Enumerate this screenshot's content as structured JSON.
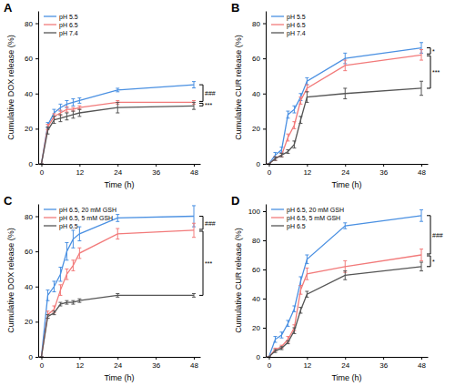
{
  "chart_data": [
    {
      "type": "line",
      "title": "A",
      "x_label": "Time (h)",
      "y_label": "Cumulative DOX release (%)",
      "x": [
        0,
        2,
        4,
        6,
        8,
        10,
        12,
        24,
        48
      ],
      "xlim": [
        -1,
        50
      ],
      "xticks": [
        0,
        12,
        24,
        36,
        48
      ],
      "ylim": [
        0,
        87
      ],
      "yticks": [
        0,
        20,
        40,
        60,
        80
      ],
      "legend": "upper left",
      "series": [
        {
          "name": "pH 5.5",
          "color": "#4a90e2",
          "values": [
            0,
            22,
            29,
            32,
            34,
            35,
            36,
            42,
            45
          ],
          "errors": [
            0,
            1.5,
            2,
            2,
            2,
            2,
            1.5,
            1,
            1.8
          ]
        },
        {
          "name": "pH 6.5",
          "color": "#f27a7a",
          "values": [
            0,
            21,
            27,
            29,
            31,
            31,
            32,
            35,
            35
          ],
          "errors": [
            0,
            1.5,
            1.5,
            1.5,
            1.5,
            1,
            1,
            1,
            1
          ]
        },
        {
          "name": "pH 7.4",
          "color": "#555555",
          "values": [
            0,
            19,
            25,
            26,
            27,
            28,
            29,
            32,
            33
          ],
          "errors": [
            0,
            2,
            2,
            2,
            2,
            2,
            2,
            3,
            2
          ]
        }
      ],
      "annotations": [
        "###",
        "***"
      ]
    },
    {
      "type": "line",
      "title": "B",
      "x_label": "Time (h)",
      "y_label": "Cumulative CUR release (%)",
      "x": [
        0,
        2,
        4,
        6,
        8,
        10,
        12,
        24,
        48
      ],
      "xlim": [
        -1,
        50
      ],
      "xticks": [
        0,
        12,
        24,
        36,
        48
      ],
      "ylim": [
        0,
        87
      ],
      "yticks": [
        0,
        20,
        40,
        60,
        80
      ],
      "legend": "upper left",
      "series": [
        {
          "name": "pH 5.5",
          "color": "#4a90e2",
          "values": [
            0,
            5,
            8,
            28,
            31,
            38,
            47,
            60,
            66
          ],
          "errors": [
            0,
            1.5,
            1.5,
            2,
            2,
            2,
            2,
            3,
            3
          ]
        },
        {
          "name": "pH 6.5",
          "color": "#f27a7a",
          "values": [
            0,
            3,
            5,
            15,
            22,
            36,
            43,
            56,
            62
          ],
          "errors": [
            0,
            1,
            1,
            2,
            2,
            2,
            2,
            3,
            3
          ]
        },
        {
          "name": "pH 7.4",
          "color": "#555555",
          "values": [
            0,
            3,
            5,
            7,
            11,
            25,
            38,
            40,
            43
          ],
          "errors": [
            0,
            1,
            1,
            1,
            2,
            2,
            3,
            3,
            4
          ]
        }
      ],
      "annotations": [
        "*",
        "***"
      ]
    },
    {
      "type": "line",
      "title": "C",
      "x_label": "Time (h)",
      "y_label": "Cumulative DOX release (%)",
      "x": [
        0,
        2,
        4,
        6,
        8,
        10,
        12,
        24,
        48
      ],
      "xlim": [
        -1,
        50
      ],
      "xticks": [
        0,
        12,
        24,
        36,
        48
      ],
      "ylim": [
        0,
        87
      ],
      "yticks": [
        0,
        20,
        40,
        60,
        80
      ],
      "legend": "upper left",
      "series": [
        {
          "name": "pH 6.5, 20 mM GSH",
          "color": "#4a90e2",
          "values": [
            0,
            35,
            40,
            47,
            60,
            67,
            70,
            79,
            80
          ],
          "errors": [
            0,
            3,
            3,
            4,
            5,
            5,
            4,
            2,
            6
          ]
        },
        {
          "name": "pH 6.5, 5 mM GSH",
          "color": "#f27a7a",
          "values": [
            0,
            24,
            27,
            38,
            47,
            52,
            59,
            70,
            72
          ],
          "errors": [
            0,
            2,
            2,
            3,
            3,
            3,
            3,
            3,
            4
          ]
        },
        {
          "name": "pH 6.5",
          "color": "#555555",
          "values": [
            0,
            23,
            25,
            30,
            31,
            31,
            32,
            35,
            35
          ],
          "errors": [
            0,
            1,
            1,
            1,
            1,
            1,
            1,
            1,
            1
          ]
        }
      ],
      "annotations": [
        "###",
        "***"
      ]
    },
    {
      "type": "line",
      "title": "D",
      "x_label": "Time (h)",
      "y_label": "Cumulative CUR release (%)",
      "x": [
        0,
        2,
        4,
        6,
        8,
        10,
        12,
        24,
        48
      ],
      "xlim": [
        -1,
        50
      ],
      "xticks": [
        0,
        12,
        24,
        36,
        48
      ],
      "ylim": [
        0,
        105
      ],
      "yticks": [
        0,
        20,
        40,
        60,
        80,
        100
      ],
      "legend": "upper left",
      "series": [
        {
          "name": "pH 6.5, 20 mM GSH",
          "color": "#4a90e2",
          "values": [
            0,
            12,
            15,
            23,
            33,
            52,
            67,
            90,
            97
          ],
          "errors": [
            0,
            2,
            2,
            2,
            2,
            3,
            3,
            2,
            4
          ]
        },
        {
          "name": "pH 6.5, 5 mM GSH",
          "color": "#f27a7a",
          "values": [
            0,
            5,
            7,
            12,
            20,
            46,
            57,
            62,
            70
          ],
          "errors": [
            0,
            1,
            1,
            2,
            2,
            3,
            4,
            4,
            4
          ]
        },
        {
          "name": "pH 6.5",
          "color": "#555555",
          "values": [
            0,
            4,
            6,
            10,
            18,
            32,
            43,
            56,
            62
          ],
          "errors": [
            0,
            1,
            1,
            1,
            2,
            2,
            2,
            3,
            3
          ]
        }
      ],
      "annotations": [
        "###",
        "*"
      ]
    }
  ]
}
